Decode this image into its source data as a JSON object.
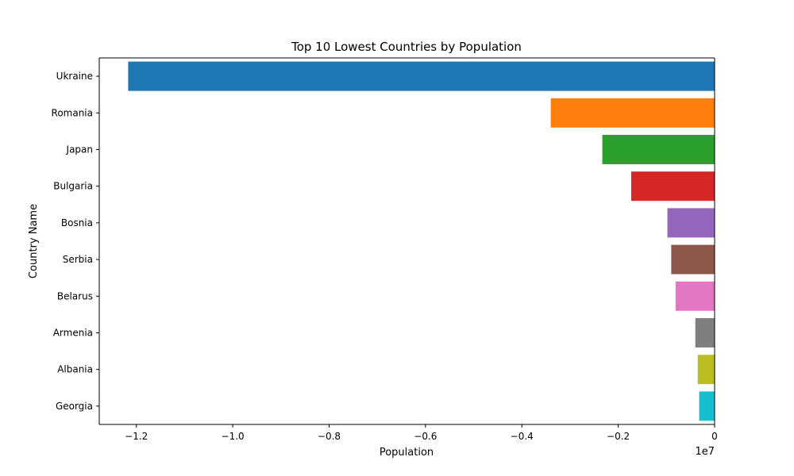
{
  "chart_data": {
    "type": "bar",
    "orientation": "horizontal",
    "title": "Top 10 Lowest Countries by Population",
    "xlabel": "Population",
    "ylabel": "Country Name",
    "x_offset_label": "1e7",
    "xlim": [
      -12770000,
      0
    ],
    "xticks": [
      -1.2,
      -1.0,
      -0.8,
      -0.6,
      -0.4,
      -0.2,
      0
    ],
    "xtick_labels": [
      "−1.2",
      "−1.0",
      "−0.8",
      "−0.6",
      "−0.4",
      "−0.2",
      "0"
    ],
    "xtick_scale": 10000000,
    "categories": [
      "Ukraine",
      "Romania",
      "Japan",
      "Bulgaria",
      "Bosnia",
      "Serbia",
      "Belarus",
      "Armenia",
      "Albania",
      "Georgia"
    ],
    "values": [
      -12170000,
      -3400000,
      -2330000,
      -1730000,
      -980000,
      -900000,
      -810000,
      -400000,
      -350000,
      -320000
    ],
    "colors": [
      "#1f77b4",
      "#ff7f0e",
      "#2ca02c",
      "#d62728",
      "#9467bd",
      "#8c564b",
      "#e377c2",
      "#7f7f7f",
      "#bcbd22",
      "#17becf"
    ],
    "grid": false,
    "legend": "none"
  }
}
